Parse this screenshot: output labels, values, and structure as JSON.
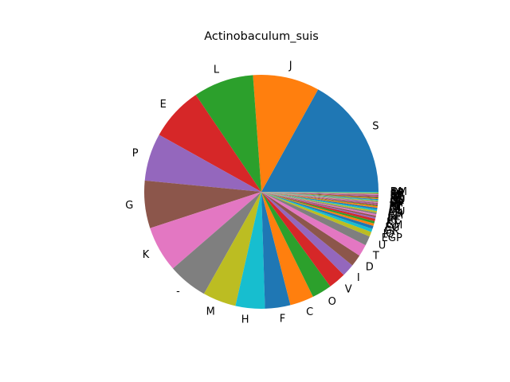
{
  "chart_data": {
    "type": "pie",
    "title": "Actinobaculum_suis",
    "start_angle_deg": 0,
    "direction": "counterclockwise",
    "slices": [
      {
        "label": "S",
        "value": 155,
        "color": "#1f77b4"
      },
      {
        "label": "J",
        "value": 84,
        "color": "#ff7f0e"
      },
      {
        "label": "L",
        "value": 76,
        "color": "#2ca02c"
      },
      {
        "label": "E",
        "value": 68,
        "color": "#d62728"
      },
      {
        "label": "P",
        "value": 60,
        "color": "#9467bd"
      },
      {
        "label": "G",
        "value": 60,
        "color": "#8c564b"
      },
      {
        "label": "K",
        "value": 58,
        "color": "#e377c2"
      },
      {
        "label": "-",
        "value": 50,
        "color": "#7f7f7f"
      },
      {
        "label": "M",
        "value": 42,
        "color": "#bcbd22"
      },
      {
        "label": "H",
        "value": 37,
        "color": "#17becf"
      },
      {
        "label": "F",
        "value": 32,
        "color": "#1f77b4"
      },
      {
        "label": "C",
        "value": 30,
        "color": "#ff7f0e"
      },
      {
        "label": "O",
        "value": 25,
        "color": "#2ca02c"
      },
      {
        "label": "V",
        "value": 22,
        "color": "#d62728"
      },
      {
        "label": "I",
        "value": 16,
        "color": "#9467bd"
      },
      {
        "label": "D",
        "value": 15,
        "color": "#8c564b"
      },
      {
        "label": "T",
        "value": 15,
        "color": "#e377c2"
      },
      {
        "label": "U",
        "value": 12,
        "color": "#7f7f7f"
      },
      {
        "label": "EGP",
        "value": 6,
        "color": "#bcbd22"
      },
      {
        "label": "IQ",
        "value": 4,
        "color": "#17becf"
      },
      {
        "label": "GK",
        "value": 4,
        "color": "#1f77b4"
      },
      {
        "label": "EG",
        "value": 3,
        "color": "#ff7f0e"
      },
      {
        "label": "GM",
        "value": 3,
        "color": "#2ca02c"
      },
      {
        "label": "KT",
        "value": 3,
        "color": "#d62728"
      },
      {
        "label": "CE",
        "value": 2,
        "color": "#9467bd"
      },
      {
        "label": "JK",
        "value": 2,
        "color": "#8c564b"
      },
      {
        "label": "LV",
        "value": 2,
        "color": "#e377c2"
      },
      {
        "label": "EM",
        "value": 2,
        "color": "#7f7f7f"
      },
      {
        "label": "EH",
        "value": 2,
        "color": "#bcbd22"
      },
      {
        "label": "MU",
        "value": 2,
        "color": "#17becf"
      },
      {
        "label": "DL",
        "value": 2,
        "color": "#1f77b4"
      },
      {
        "label": "IM",
        "value": 2,
        "color": "#ff7f0e"
      },
      {
        "label": "KL",
        "value": 1,
        "color": "#2ca02c"
      },
      {
        "label": "PT",
        "value": 1,
        "color": "#d62728"
      },
      {
        "label": "FP",
        "value": 1,
        "color": "#9467bd"
      },
      {
        "label": "HP",
        "value": 1,
        "color": "#8c564b"
      },
      {
        "label": "FH",
        "value": 1,
        "color": "#e377c2"
      },
      {
        "label": "LO",
        "value": 1,
        "color": "#7f7f7f"
      },
      {
        "label": "DJ",
        "value": 1,
        "color": "#bcbd22"
      },
      {
        "label": "GL",
        "value": 1,
        "color": "#17becf"
      },
      {
        "label": "NU",
        "value": 1,
        "color": "#1f77b4"
      },
      {
        "label": "KO",
        "value": 1,
        "color": "#ff7f0e"
      },
      {
        "label": "HJ",
        "value": 1,
        "color": "#2ca02c"
      },
      {
        "label": "JM",
        "value": 1,
        "color": "#d62728"
      },
      {
        "label": "GT",
        "value": 1,
        "color": "#9467bd"
      },
      {
        "label": "EP",
        "value": 1,
        "color": "#8c564b"
      },
      {
        "label": "EJ",
        "value": 1,
        "color": "#e377c2"
      },
      {
        "label": "FG",
        "value": 1,
        "color": "#7f7f7f"
      },
      {
        "label": "CP",
        "value": 1,
        "color": "#bcbd22"
      },
      {
        "label": "DM",
        "value": 1,
        "color": "#17becf"
      }
    ]
  }
}
